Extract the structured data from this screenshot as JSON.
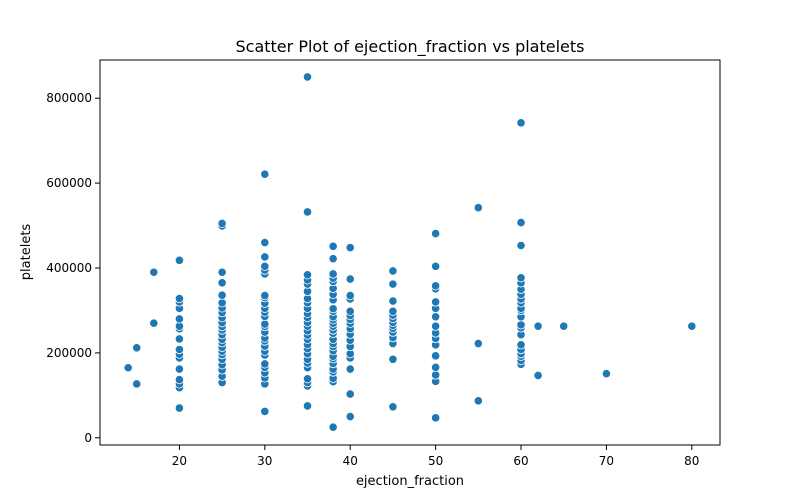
{
  "chart_data": {
    "type": "scatter",
    "title": "Scatter Plot of ejection_fraction vs platelets",
    "xlabel": "ejection_fraction",
    "ylabel": "platelets",
    "xlim": [
      10.7,
      83.3
    ],
    "ylim": [
      -17000,
      890000
    ],
    "xticks": [
      20,
      30,
      40,
      50,
      60,
      70,
      80
    ],
    "yticks": [
      0,
      200000,
      400000,
      600000,
      800000
    ],
    "grid": false,
    "color": "#1f77b4",
    "points": [
      [
        14,
        165000
      ],
      [
        15,
        127000
      ],
      [
        15,
        212000
      ],
      [
        17,
        270000
      ],
      [
        17,
        390000
      ],
      [
        20,
        70000
      ],
      [
        20,
        118000
      ],
      [
        20,
        127000
      ],
      [
        20,
        137000
      ],
      [
        20,
        162000
      ],
      [
        20,
        188000
      ],
      [
        20,
        197000
      ],
      [
        20,
        208000
      ],
      [
        20,
        233000
      ],
      [
        20,
        257000
      ],
      [
        20,
        263000
      ],
      [
        20,
        280000
      ],
      [
        20,
        305000
      ],
      [
        20,
        320000
      ],
      [
        20,
        328000
      ],
      [
        20,
        418000
      ],
      [
        25,
        130000
      ],
      [
        25,
        145000
      ],
      [
        25,
        160000
      ],
      [
        25,
        172000
      ],
      [
        25,
        185000
      ],
      [
        25,
        196000
      ],
      [
        25,
        204000
      ],
      [
        25,
        213000
      ],
      [
        25,
        224000
      ],
      [
        25,
        232000
      ],
      [
        25,
        243000
      ],
      [
        25,
        254000
      ],
      [
        25,
        262000
      ],
      [
        25,
        271000
      ],
      [
        25,
        283000
      ],
      [
        25,
        295000
      ],
      [
        25,
        306000
      ],
      [
        25,
        318000
      ],
      [
        25,
        336000
      ],
      [
        25,
        365000
      ],
      [
        25,
        390000
      ],
      [
        25,
        499000
      ],
      [
        25,
        505000
      ],
      [
        30,
        62000
      ],
      [
        30,
        127000
      ],
      [
        30,
        141000
      ],
      [
        30,
        153000
      ],
      [
        30,
        166000
      ],
      [
        30,
        174000
      ],
      [
        30,
        195000
      ],
      [
        30,
        204000
      ],
      [
        30,
        216000
      ],
      [
        30,
        228000
      ],
      [
        30,
        235000
      ],
      [
        30,
        249000
      ],
      [
        30,
        262000
      ],
      [
        30,
        268000
      ],
      [
        30,
        286000
      ],
      [
        30,
        296000
      ],
      [
        30,
        305000
      ],
      [
        30,
        317000
      ],
      [
        30,
        330000
      ],
      [
        30,
        335000
      ],
      [
        30,
        386000
      ],
      [
        30,
        395000
      ],
      [
        30,
        404000
      ],
      [
        30,
        426000
      ],
      [
        30,
        460000
      ],
      [
        30,
        621000
      ],
      [
        35,
        75000
      ],
      [
        35,
        122000
      ],
      [
        35,
        130000
      ],
      [
        35,
        139000
      ],
      [
        35,
        165000
      ],
      [
        35,
        176000
      ],
      [
        35,
        185000
      ],
      [
        35,
        198000
      ],
      [
        35,
        210000
      ],
      [
        35,
        220000
      ],
      [
        35,
        232000
      ],
      [
        35,
        242000
      ],
      [
        35,
        252000
      ],
      [
        35,
        263000
      ],
      [
        35,
        272000
      ],
      [
        35,
        283000
      ],
      [
        35,
        293000
      ],
      [
        35,
        305000
      ],
      [
        35,
        318000
      ],
      [
        35,
        328000
      ],
      [
        35,
        345000
      ],
      [
        35,
        362000
      ],
      [
        35,
        372000
      ],
      [
        35,
        384000
      ],
      [
        35,
        532000
      ],
      [
        35,
        850000
      ],
      [
        38,
        25000
      ],
      [
        38,
        132000
      ],
      [
        38,
        140000
      ],
      [
        38,
        155000
      ],
      [
        38,
        162000
      ],
      [
        38,
        175000
      ],
      [
        38,
        186000
      ],
      [
        38,
        192000
      ],
      [
        38,
        205000
      ],
      [
        38,
        215000
      ],
      [
        38,
        222000
      ],
      [
        38,
        232000
      ],
      [
        38,
        246000
      ],
      [
        38,
        254000
      ],
      [
        38,
        263000
      ],
      [
        38,
        270000
      ],
      [
        38,
        278000
      ],
      [
        38,
        285000
      ],
      [
        38,
        298000
      ],
      [
        38,
        304000
      ],
      [
        38,
        325000
      ],
      [
        38,
        338000
      ],
      [
        38,
        352000
      ],
      [
        38,
        368000
      ],
      [
        38,
        376000
      ],
      [
        38,
        386000
      ],
      [
        38,
        422000
      ],
      [
        38,
        451000
      ],
      [
        40,
        50000
      ],
      [
        40,
        103000
      ],
      [
        40,
        162000
      ],
      [
        40,
        188000
      ],
      [
        40,
        198000
      ],
      [
        40,
        215000
      ],
      [
        40,
        230000
      ],
      [
        40,
        244000
      ],
      [
        40,
        257000
      ],
      [
        40,
        270000
      ],
      [
        40,
        279000
      ],
      [
        40,
        288000
      ],
      [
        40,
        298000
      ],
      [
        40,
        327000
      ],
      [
        40,
        335000
      ],
      [
        40,
        374000
      ],
      [
        40,
        448000
      ],
      [
        45,
        73000
      ],
      [
        45,
        185000
      ],
      [
        45,
        222000
      ],
      [
        45,
        236000
      ],
      [
        45,
        249000
      ],
      [
        45,
        258000
      ],
      [
        45,
        265000
      ],
      [
        45,
        272000
      ],
      [
        45,
        281000
      ],
      [
        45,
        289000
      ],
      [
        45,
        298000
      ],
      [
        45,
        322000
      ],
      [
        45,
        362000
      ],
      [
        45,
        393000
      ],
      [
        50,
        47000
      ],
      [
        50,
        133000
      ],
      [
        50,
        148000
      ],
      [
        50,
        166000
      ],
      [
        50,
        193000
      ],
      [
        50,
        219000
      ],
      [
        50,
        234000
      ],
      [
        50,
        247000
      ],
      [
        50,
        263000
      ],
      [
        50,
        285000
      ],
      [
        50,
        305000
      ],
      [
        50,
        320000
      ],
      [
        50,
        351000
      ],
      [
        50,
        358000
      ],
      [
        50,
        404000
      ],
      [
        50,
        481000
      ],
      [
        55,
        87000
      ],
      [
        55,
        222000
      ],
      [
        55,
        542000
      ],
      [
        60,
        173000
      ],
      [
        60,
        182000
      ],
      [
        60,
        192000
      ],
      [
        60,
        198000
      ],
      [
        60,
        208000
      ],
      [
        60,
        219000
      ],
      [
        60,
        243000
      ],
      [
        60,
        259000
      ],
      [
        60,
        266000
      ],
      [
        60,
        285000
      ],
      [
        60,
        300000
      ],
      [
        60,
        305000
      ],
      [
        60,
        318000
      ],
      [
        60,
        327000
      ],
      [
        60,
        338000
      ],
      [
        60,
        350000
      ],
      [
        60,
        365000
      ],
      [
        60,
        377000
      ],
      [
        60,
        453000
      ],
      [
        60,
        507000
      ],
      [
        60,
        742000
      ],
      [
        62,
        147000
      ],
      [
        62,
        263000
      ],
      [
        65,
        263000
      ],
      [
        70,
        151000
      ],
      [
        80,
        263000
      ]
    ]
  }
}
